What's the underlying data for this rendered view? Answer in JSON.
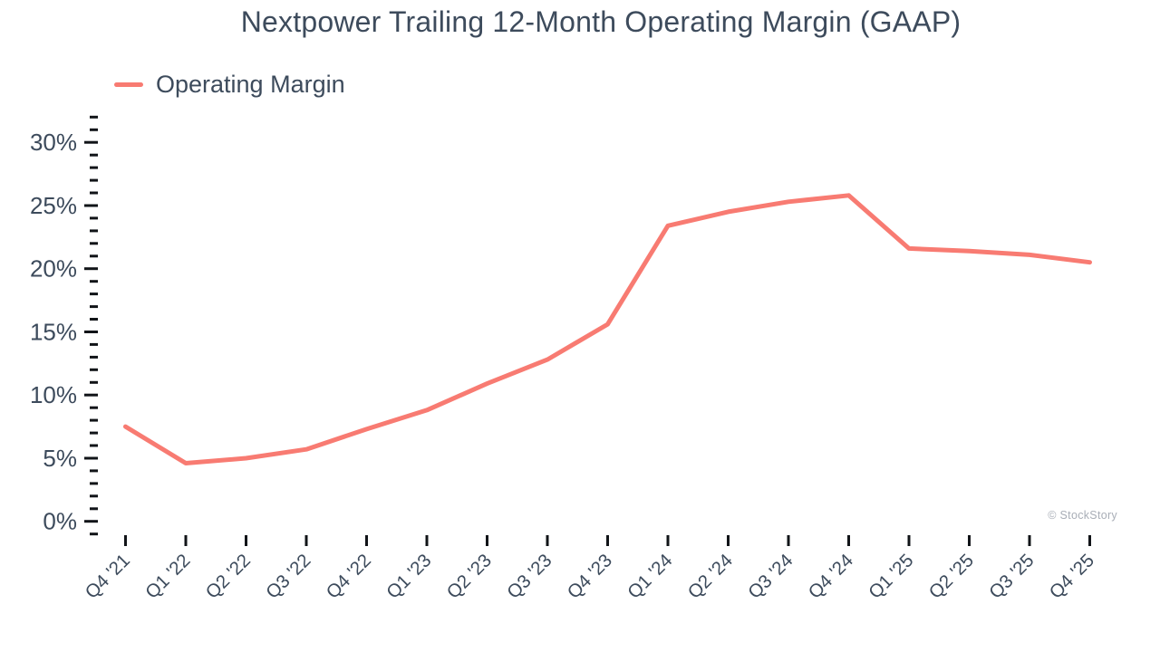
{
  "page": {
    "title": "Nextpower Trailing 12-Month Operating Margin (GAAP)"
  },
  "legend": {
    "label": "Operating Margin"
  },
  "watermark": "© StockStory",
  "colors": {
    "line": "#F87B72",
    "text": "#3D4B5C",
    "tick": "#111418",
    "watermark": "#A9AEB7"
  },
  "chart_data": {
    "type": "line",
    "title": "Nextpower Trailing 12-Month Operating Margin (GAAP)",
    "categories": [
      "Q4 '21",
      "Q1 '22",
      "Q2 '22",
      "Q3 '22",
      "Q4 '22",
      "Q1 '23",
      "Q2 '23",
      "Q3 '23",
      "Q4 '23",
      "Q1 '24",
      "Q2 '24",
      "Q3 '24",
      "Q4 '24",
      "Q1 '25",
      "Q2 '25",
      "Q3 '25",
      "Q4 '25"
    ],
    "series": [
      {
        "name": "Operating Margin",
        "values": [
          7.5,
          4.6,
          5.0,
          5.7,
          7.3,
          8.8,
          10.9,
          12.8,
          15.6,
          23.4,
          24.5,
          25.3,
          25.8,
          21.6,
          21.4,
          21.1,
          20.5
        ]
      }
    ],
    "unit": "%",
    "xlabel": "",
    "ylabel": "",
    "y_axis": {
      "min": -1,
      "max": 32,
      "minor_step": 1,
      "major_step": 5,
      "labeled_min": 0,
      "labeled_max": 30,
      "tick_labels": [
        "0%",
        "5%",
        "10%",
        "15%",
        "20%",
        "25%",
        "30%"
      ]
    },
    "legend_position": "top-left",
    "grid": false
  }
}
